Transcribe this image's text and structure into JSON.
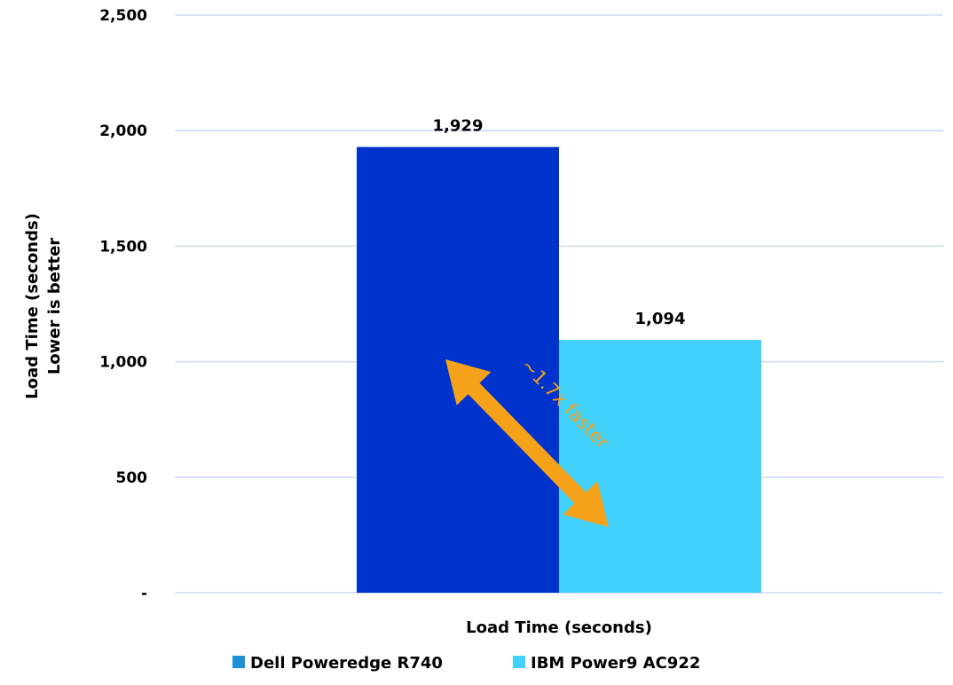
{
  "chart_data": {
    "type": "bar",
    "categories": [
      "Load Time (seconds)"
    ],
    "series": [
      {
        "name": "Dell Poweredge R740",
        "values": [
          1929
        ],
        "label": "1,929",
        "color": "#0033cc",
        "legend_color": "#1e90d6"
      },
      {
        "name": "IBM Power9 AC922",
        "values": [
          1094
        ],
        "label": "1,094",
        "color": "#40d0fb",
        "legend_color": "#40d0fb"
      }
    ],
    "ylim": [
      0,
      2500
    ],
    "yticks": [
      {
        "value": 0,
        "label": "-"
      },
      {
        "value": 500,
        "label": "500"
      },
      {
        "value": 1000,
        "label": "1,000"
      },
      {
        "value": 1500,
        "label": "1,500"
      },
      {
        "value": 2000,
        "label": "2,000"
      },
      {
        "value": 2500,
        "label": "2,500"
      }
    ],
    "ylabel_line1": "Load Time (seconds)",
    "ylabel_line2": "Lower is better",
    "xlabel": "Load Time (seconds)",
    "grid": true,
    "grid_color": "#c5d3ee",
    "legend_position": "bottom",
    "annotation": {
      "text": "~1.7x faster",
      "color": "#f5a21a"
    }
  }
}
